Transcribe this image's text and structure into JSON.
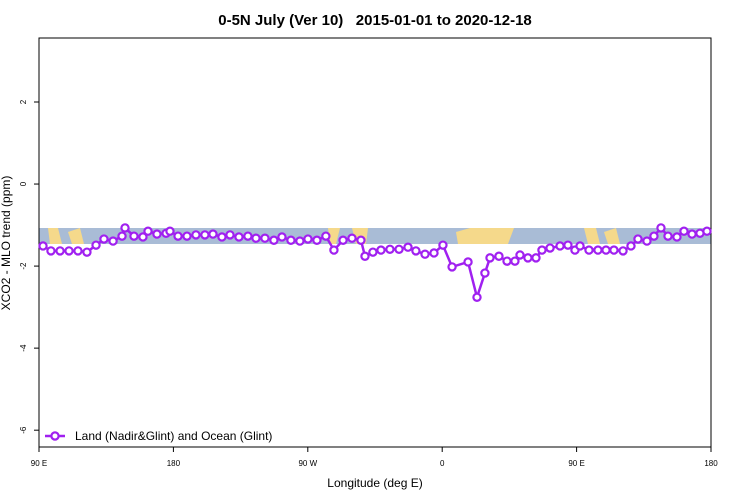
{
  "chart_data": {
    "type": "line",
    "title": "0-5N July (Ver 10)   2015-01-01 to 2020-12-18",
    "x_label": "Longitude (deg E)",
    "y_label": "XCO2 - MLO trend (ppm)",
    "xlim": [
      90,
      540
    ],
    "ylim": [
      -6.41,
      3.56
    ],
    "xticks": [
      {
        "value": 90,
        "label": "90 E"
      },
      180,
      {
        "value": 270,
        "label": "90 W"
      },
      {
        "value": 360,
        "label": "0"
      },
      {
        "value": 450,
        "label": "90 E"
      },
      {
        "value": 540,
        "label": "180"
      }
    ],
    "yticks": [
      -6,
      -4,
      -2,
      0,
      2
    ],
    "legend_position": "bottom-left",
    "x": [
      92.7,
      98.0,
      104.1,
      110.1,
      116.1,
      122.1,
      128.2,
      133.5,
      139.6,
      145.6,
      147.6,
      153.6,
      159.6,
      163.0,
      169.0,
      175.1,
      177.7,
      183.1,
      189.1,
      195.1,
      201.1,
      206.5,
      212.5,
      217.9,
      223.9,
      229.9,
      235.3,
      241.3,
      247.3,
      252.7,
      258.7,
      264.7,
      270.1,
      276.1,
      282.1,
      287.5,
      293.6,
      299.6,
      305.6,
      308.3,
      313.6,
      319.0,
      325.0,
      331.1,
      337.1,
      342.4,
      348.5,
      354.5,
      360.5,
      366.6,
      377.3,
      383.3,
      388.6,
      392.0,
      398.0,
      403.4,
      408.7,
      412.1,
      417.4,
      422.8,
      426.8,
      432.2,
      438.9,
      444.2,
      448.9,
      452.3,
      458.3,
      464.3,
      469.7,
      475.0,
      481.1,
      486.4,
      491.1,
      497.1,
      501.8,
      506.5,
      511.2,
      517.2,
      521.9,
      527.3,
      532.6,
      537.3
    ],
    "series": [
      {
        "name": "Land (Nadir&Glint) and Ocean (Glint)",
        "color": "#a020f0",
        "values": [
          -1.51,
          -1.63,
          -1.63,
          -1.63,
          -1.63,
          -1.66,
          -1.49,
          -1.34,
          -1.39,
          -1.27,
          -1.07,
          -1.27,
          -1.29,
          -1.15,
          -1.22,
          -1.2,
          -1.15,
          -1.27,
          -1.27,
          -1.24,
          -1.24,
          -1.22,
          -1.29,
          -1.24,
          -1.29,
          -1.27,
          -1.32,
          -1.32,
          -1.37,
          -1.29,
          -1.37,
          -1.39,
          -1.34,
          -1.37,
          -1.27,
          -1.61,
          -1.37,
          -1.32,
          -1.37,
          -1.76,
          -1.66,
          -1.61,
          -1.59,
          -1.59,
          -1.54,
          -1.63,
          -1.71,
          -1.68,
          -1.49,
          -2.02,
          -1.9,
          -2.76,
          -2.17,
          -1.8,
          -1.76,
          -1.88,
          -1.88,
          -1.73,
          -1.8,
          -1.8,
          -1.61,
          -1.56,
          -1.51,
          -1.49,
          -1.61,
          -1.51,
          -1.61,
          -1.61,
          -1.61,
          -1.61,
          -1.63,
          -1.51,
          -1.34,
          -1.39,
          -1.27,
          -1.07,
          -1.27,
          -1.29,
          -1.15,
          -1.22,
          -1.2,
          -1.15
        ]
      }
    ]
  }
}
